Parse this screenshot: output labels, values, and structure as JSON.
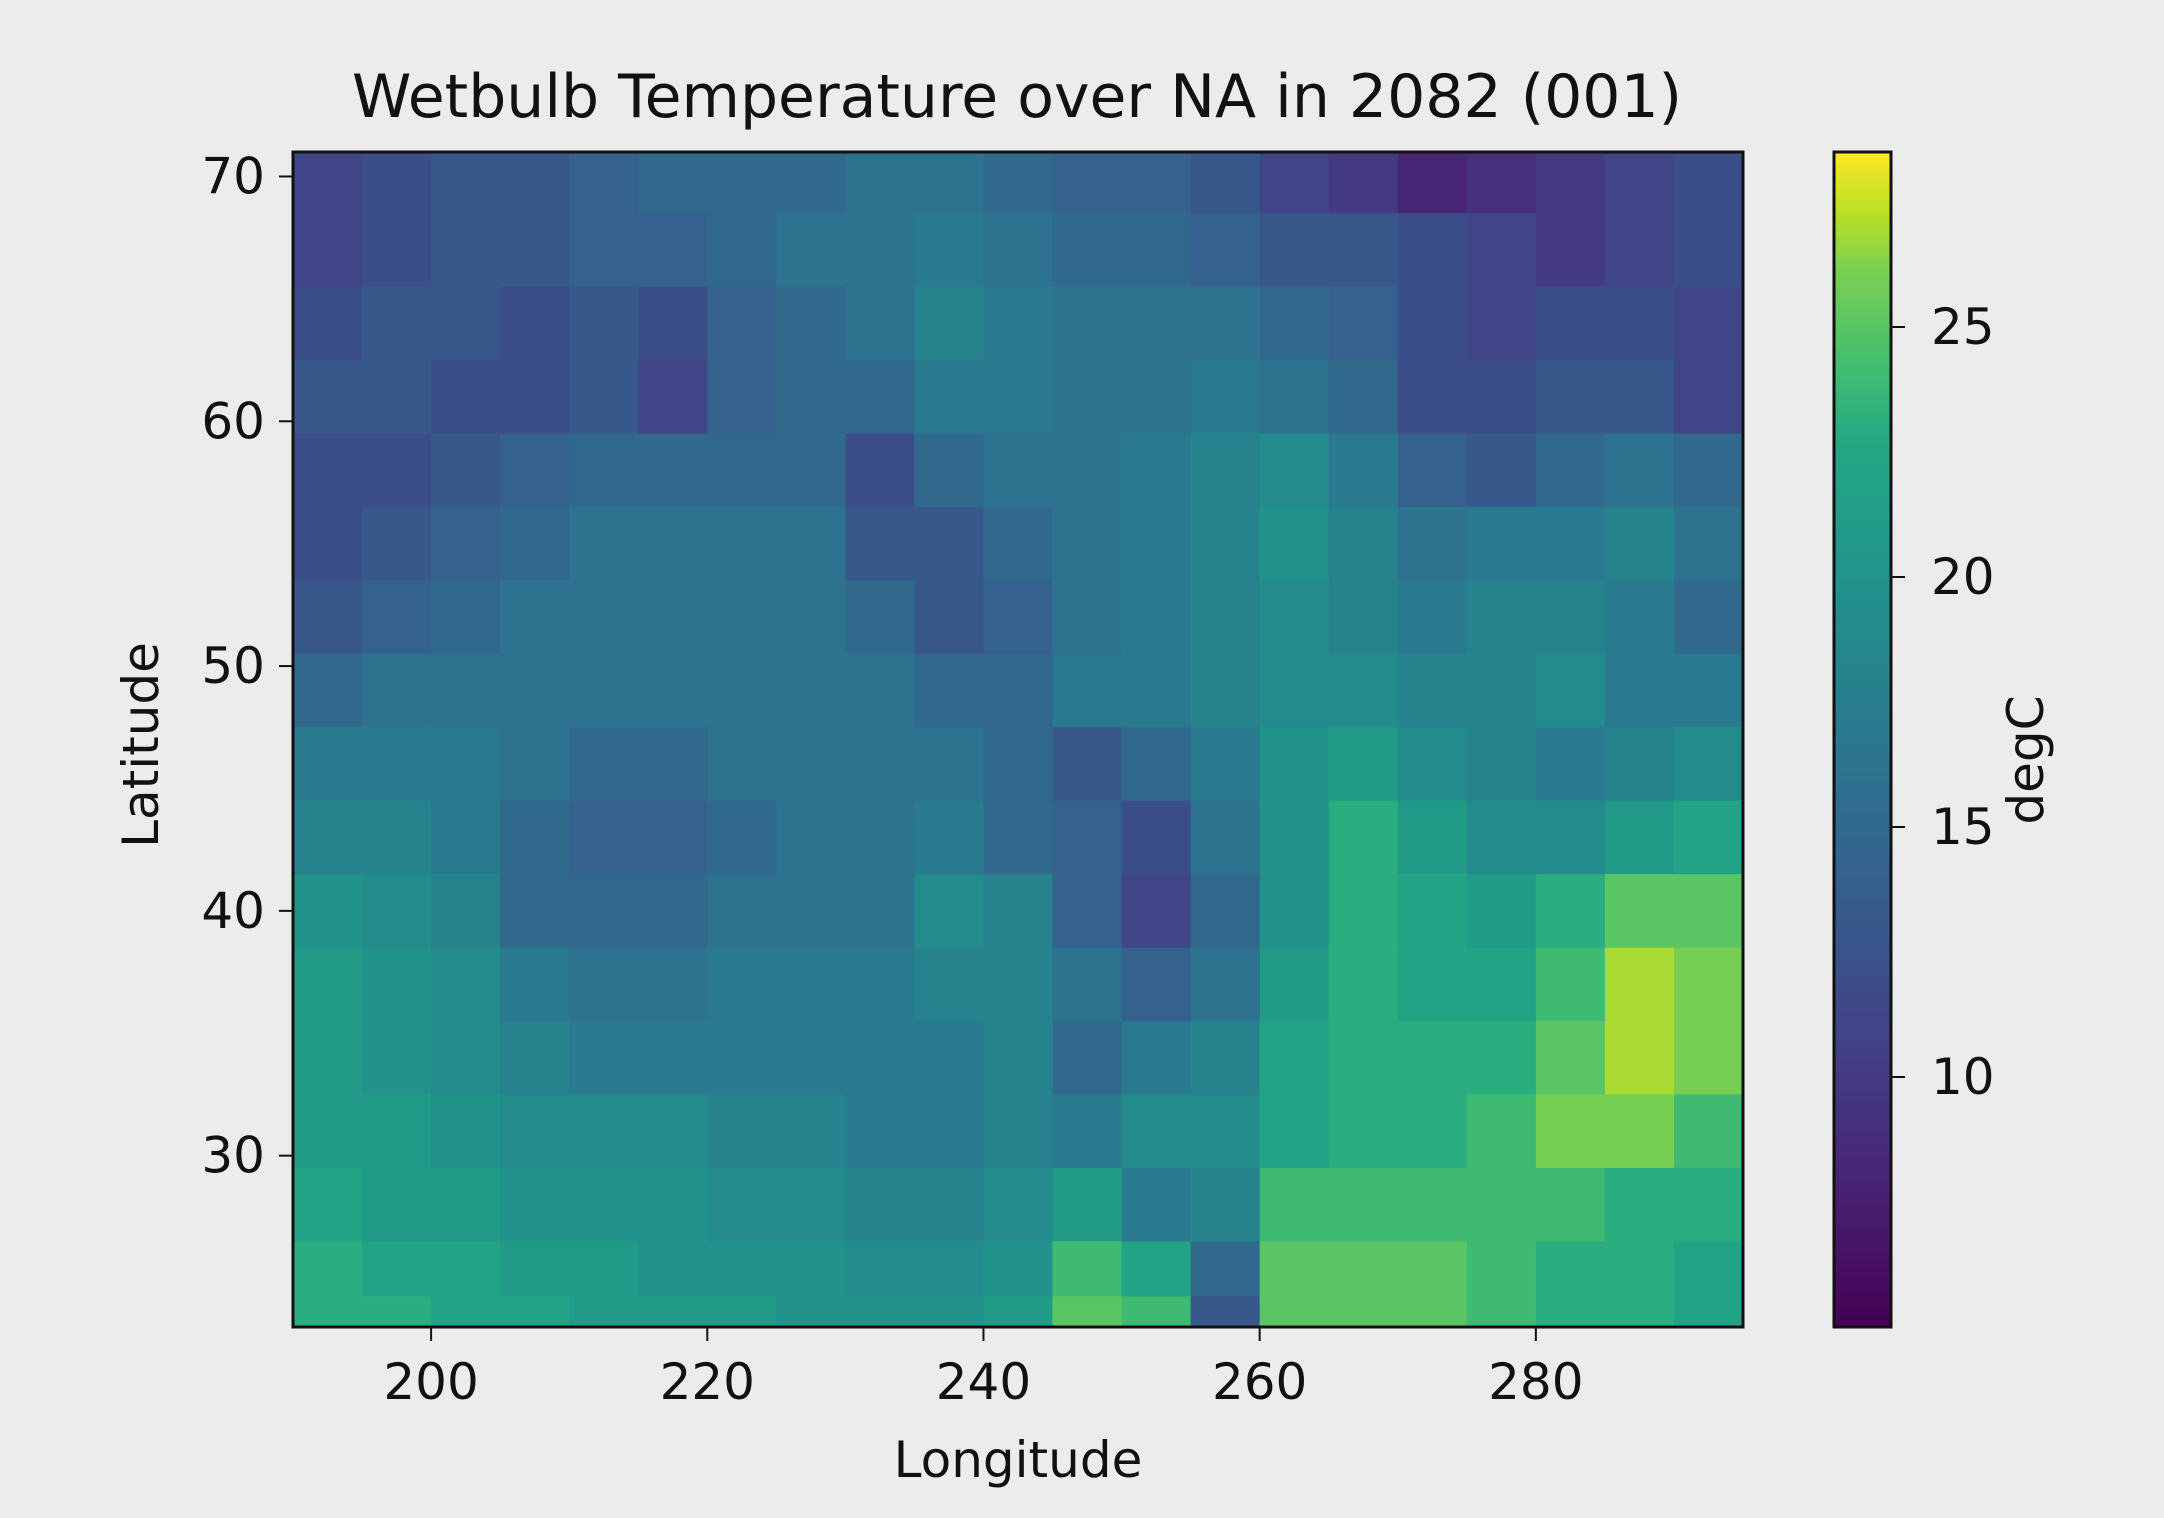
{
  "chart_data": {
    "type": "heatmap",
    "title": "Wetbulb Temperature over NA in 2082 (001)",
    "xlabel": "Longitude",
    "ylabel": "Latitude",
    "colorbar_label": "degC",
    "colormap": "viridis",
    "xlim": [
      190,
      295
    ],
    "ylim": [
      23,
      71
    ],
    "vmin": 5,
    "vmax": 28.5,
    "xticks": [
      200,
      220,
      240,
      260,
      280
    ],
    "yticks": [
      30,
      40,
      50,
      60,
      70
    ],
    "colorbar_ticks": [
      10,
      15,
      20,
      25
    ],
    "grid": false,
    "x_centers": [
      192.5,
      197.5,
      202.5,
      207.5,
      212.5,
      217.5,
      222.5,
      227.5,
      232.5,
      237.5,
      242.5,
      247.5,
      252.5,
      257.5,
      262.5,
      267.5,
      272.5,
      277.5,
      282.5,
      287.5,
      292.5
    ],
    "y_centers": [
      70,
      67,
      64,
      61,
      58,
      55,
      52,
      49,
      46,
      43,
      40,
      37,
      34,
      31,
      28,
      25,
      23.5
    ],
    "values": [
      [
        11,
        12,
        13,
        13,
        14,
        15,
        15,
        15,
        16,
        16,
        15,
        14,
        14,
        13,
        11,
        10,
        8,
        9,
        10,
        11,
        12
      ],
      [
        11,
        12,
        13,
        13,
        14,
        14,
        15,
        16,
        16,
        17,
        16,
        15,
        15,
        14,
        13,
        13,
        12,
        11,
        10,
        11,
        12
      ],
      [
        12,
        13,
        13,
        12,
        13,
        12,
        14,
        15,
        16,
        18,
        17,
        16,
        16,
        16,
        15,
        14,
        12,
        11,
        12,
        12,
        11
      ],
      [
        13,
        13,
        12,
        12,
        13,
        11,
        14,
        15,
        15,
        17,
        17,
        16,
        16,
        17,
        16,
        15,
        12,
        12,
        13,
        13,
        11
      ],
      [
        12,
        12,
        13,
        14,
        15,
        15,
        15,
        15,
        12,
        15,
        16,
        16,
        17,
        18,
        19,
        17,
        14,
        13,
        15,
        16,
        15
      ],
      [
        12,
        13,
        14,
        15,
        16,
        16,
        16,
        16,
        13,
        13,
        15,
        16,
        17,
        18,
        20,
        18,
        16,
        17,
        17,
        18,
        16
      ],
      [
        13,
        14,
        15,
        16,
        16,
        16,
        16,
        16,
        15,
        13,
        14,
        16,
        17,
        18,
        19,
        18,
        17,
        18,
        18,
        17,
        15
      ],
      [
        15,
        16,
        16,
        16,
        16,
        16,
        16,
        16,
        16,
        15,
        15,
        17,
        17,
        18,
        19,
        19,
        18,
        18,
        19,
        17,
        17
      ],
      [
        17,
        17,
        17,
        16,
        15,
        15,
        16,
        16,
        16,
        16,
        15,
        13,
        15,
        17,
        20,
        21,
        19,
        18,
        17,
        18,
        19
      ],
      [
        18,
        18,
        17,
        15,
        14,
        14,
        15,
        16,
        16,
        17,
        15,
        14,
        12,
        16,
        20,
        23,
        21,
        19,
        19,
        21,
        22
      ],
      [
        20,
        19,
        18,
        15,
        15,
        15,
        16,
        16,
        16,
        19,
        18,
        14,
        11,
        15,
        20,
        23,
        22,
        21,
        23,
        25,
        25
      ],
      [
        21,
        20,
        19,
        17,
        16,
        16,
        17,
        17,
        17,
        18,
        18,
        16,
        14,
        16,
        21,
        23,
        22,
        22,
        24,
        27,
        26
      ],
      [
        21,
        20,
        19,
        18,
        17,
        17,
        17,
        17,
        17,
        17,
        18,
        15,
        17,
        18,
        22,
        23,
        23,
        23,
        25,
        27,
        26
      ],
      [
        21,
        21,
        20,
        19,
        19,
        19,
        18,
        18,
        17,
        17,
        18,
        17,
        19,
        19,
        22,
        23,
        23,
        24,
        26,
        26,
        24
      ],
      [
        22,
        21,
        21,
        20,
        20,
        20,
        19,
        19,
        18,
        18,
        19,
        21,
        17,
        18,
        24,
        24,
        24,
        24,
        24,
        23,
        23
      ],
      [
        23,
        22,
        22,
        21,
        21,
        20,
        20,
        20,
        19,
        19,
        20,
        24,
        22,
        15,
        25,
        25,
        25,
        24,
        23,
        23,
        22
      ],
      [
        23,
        23,
        22,
        22,
        21,
        21,
        21,
        20,
        20,
        20,
        21,
        25,
        24,
        13,
        25,
        25,
        25,
        24,
        23,
        23,
        22
      ]
    ]
  }
}
